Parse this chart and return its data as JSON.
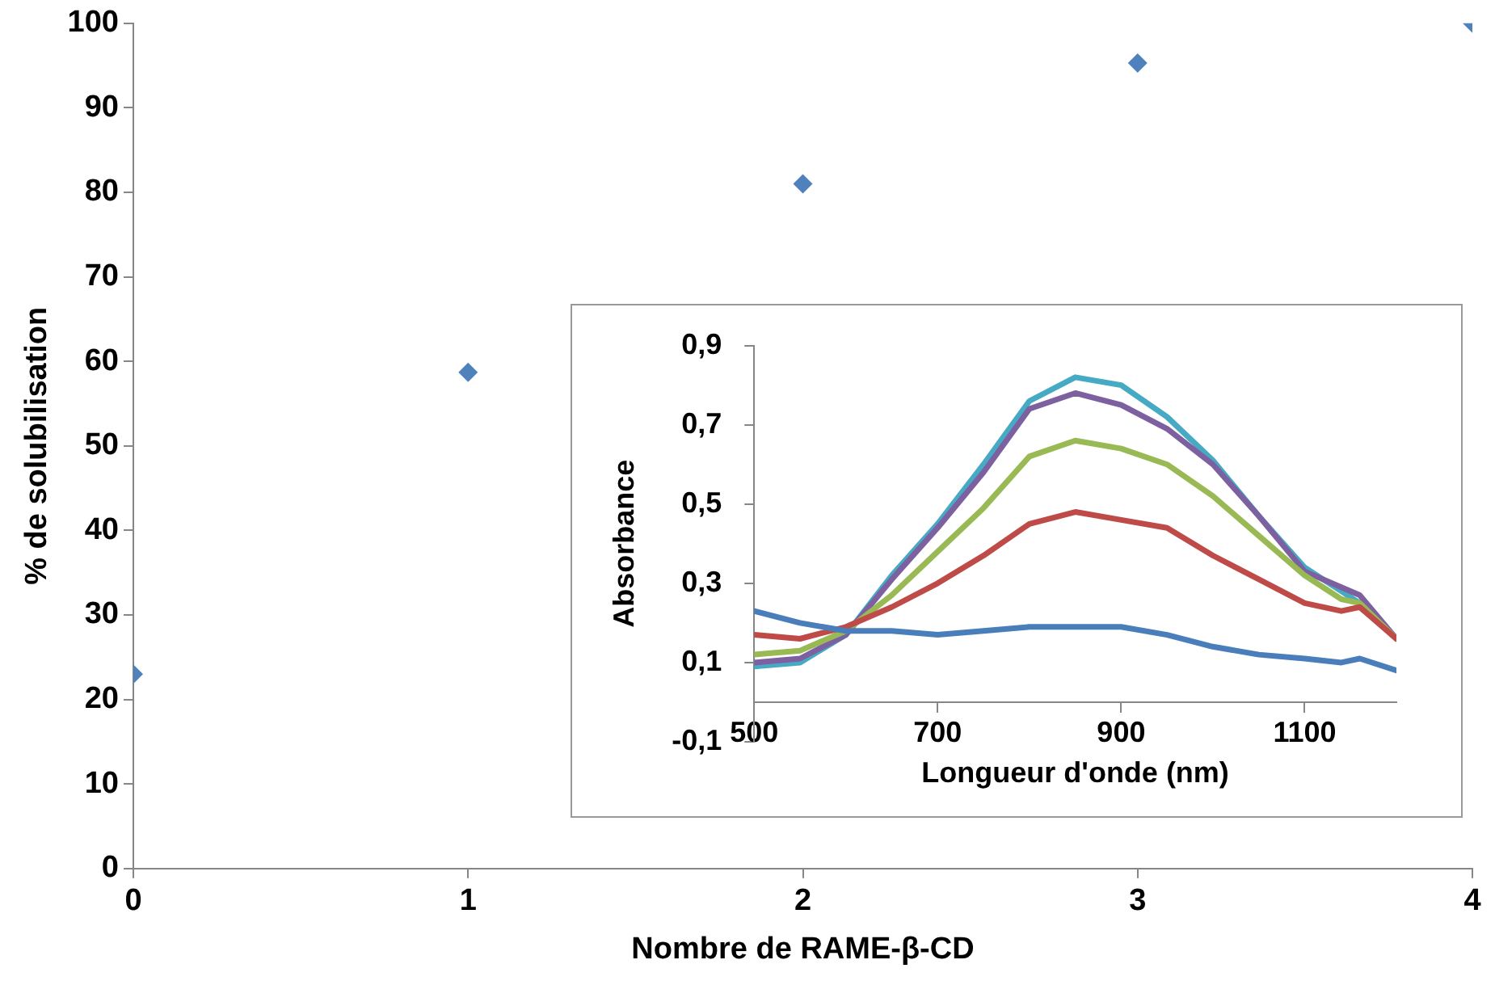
{
  "chart_data": [
    {
      "type": "scatter",
      "xlabel": "Nombre de RAME-β-CD",
      "ylabel": "% de solubilisation",
      "x": [
        0,
        1,
        2,
        3,
        4
      ],
      "values": [
        23,
        58.7,
        81,
        95.3,
        100
      ],
      "color": "#4f81bd",
      "marker": "diamond",
      "xlim": [
        0,
        4
      ],
      "xticks": [
        0,
        1,
        2,
        3,
        4
      ],
      "ylim": [
        0,
        100
      ],
      "yticks": [
        0,
        10,
        20,
        30,
        40,
        50,
        60,
        70,
        80,
        90,
        100
      ],
      "grid": false,
      "legend": false
    },
    {
      "type": "line",
      "xlabel": "Longueur d'onde (nm)",
      "ylabel": "Absorbance",
      "x": [
        500,
        550,
        600,
        650,
        700,
        750,
        800,
        850,
        900,
        950,
        1000,
        1050,
        1100,
        1140,
        1160,
        1200
      ],
      "series": [
        {
          "color": "#4a7ebb",
          "values": [
            0.23,
            0.2,
            0.18,
            0.18,
            0.17,
            0.18,
            0.19,
            0.19,
            0.19,
            0.17,
            0.14,
            0.12,
            0.11,
            0.1,
            0.11,
            0.08
          ]
        },
        {
          "color": "#be4b48",
          "values": [
            0.17,
            0.16,
            0.19,
            0.24,
            0.3,
            0.37,
            0.45,
            0.48,
            0.46,
            0.44,
            0.37,
            0.31,
            0.25,
            0.23,
            0.24,
            0.16
          ]
        },
        {
          "color": "#98b954",
          "values": [
            0.12,
            0.13,
            0.18,
            0.27,
            0.38,
            0.49,
            0.62,
            0.66,
            0.64,
            0.6,
            0.52,
            0.42,
            0.32,
            0.26,
            0.25,
            0.16
          ]
        },
        {
          "color": "#7d60a0",
          "values": [
            0.1,
            0.11,
            0.17,
            0.31,
            0.44,
            0.58,
            0.74,
            0.78,
            0.75,
            0.69,
            0.6,
            0.47,
            0.33,
            0.29,
            0.27,
            0.16
          ]
        },
        {
          "color": "#46aac5",
          "values": [
            0.09,
            0.1,
            0.17,
            0.32,
            0.45,
            0.6,
            0.76,
            0.82,
            0.8,
            0.72,
            0.61,
            0.47,
            0.34,
            0.28,
            0.25,
            0.16
          ]
        }
      ],
      "xlim": [
        500,
        1200
      ],
      "xticks": [
        500,
        700,
        900,
        1100
      ],
      "ylim": [
        -0.1,
        0.9
      ],
      "yticks": [
        {
          "value": -0.1,
          "label": "-0,1"
        },
        {
          "value": 0.1,
          "label": "0,1"
        },
        {
          "value": 0.3,
          "label": "0,3"
        },
        {
          "value": 0.5,
          "label": "0,5"
        },
        {
          "value": 0.7,
          "label": "0,7"
        },
        {
          "value": 0.9,
          "label": "0,9"
        }
      ],
      "grid": false,
      "legend": false,
      "marker": "none",
      "line_style": "solid"
    }
  ]
}
